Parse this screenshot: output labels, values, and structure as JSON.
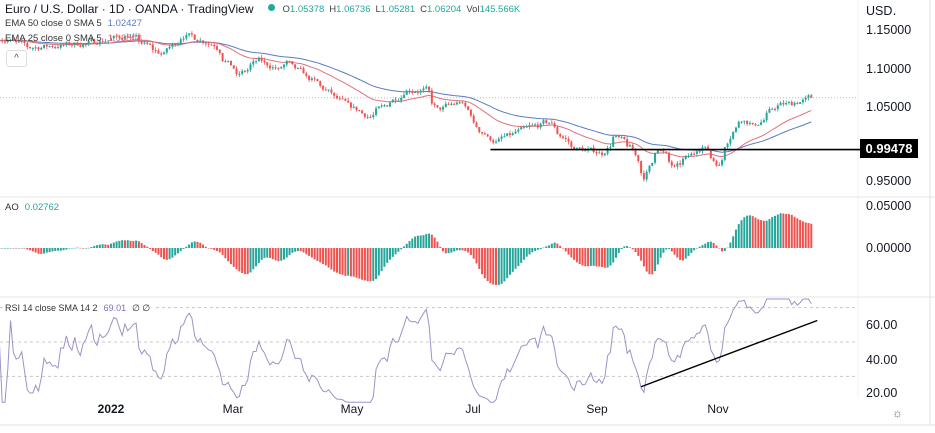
{
  "header": {
    "title": "Euro / U.S. Dollar · 1D · OANDA · TradingView",
    "ohlc": {
      "o_label": "O",
      "o": "1.05378",
      "h_label": "H",
      "h": "1.06736",
      "l_label": "L",
      "l": "1.05281",
      "c_label": "C",
      "c": "1.06204",
      "vol_label": "Vol",
      "vol": "145.566K"
    },
    "ema50_label": "EMA 50 close 0 SMA 5",
    "ema50_value": "1.02427",
    "ema25_label": "EMA 25 close 0 SMA 5",
    "ema25_value": "1.03808",
    "collapse_icon": "chevron-up-icon"
  },
  "ao": {
    "label": "AO",
    "value": "0.02762"
  },
  "rsi": {
    "label": "RSI 14 close SMA 14 2",
    "value": "69.01",
    "extra": "∅ ∅"
  },
  "price_axis": {
    "currency": "USD",
    "ticks": [
      "1.15000",
      "1.10000",
      "1.05000",
      "0.95000"
    ],
    "level_tag": "0.99478"
  },
  "ao_axis": {
    "ticks": [
      "0.05000",
      "0.00000"
    ]
  },
  "rsi_axis": {
    "ticks": [
      "60.00",
      "40.00",
      "20.00"
    ]
  },
  "time_axis": {
    "labels": [
      "2022",
      "Mar",
      "May",
      "Jul",
      "Sep",
      "Nov"
    ],
    "settings_icon": "gear-icon"
  },
  "colors": {
    "up": "#26a69a",
    "down": "#ef5350",
    "ema50": "#5b7bc4",
    "ema25": "#e0707f",
    "rsi": "#9b93c9",
    "level": "#000000"
  },
  "chart_data": {
    "type": "candlestick",
    "symbol": "EUR/USD",
    "interval": "1D",
    "ylim": [
      0.93,
      1.165
    ],
    "close_keypoints": [
      [
        "2021-11-08",
        1.14
      ],
      [
        "2021-11-22",
        1.127
      ],
      [
        "2021-12-07",
        1.13
      ],
      [
        "2021-12-22",
        1.133
      ],
      [
        "2022-01-11",
        1.143
      ],
      [
        "2022-01-28",
        1.118
      ],
      [
        "2022-02-08",
        1.144
      ],
      [
        "2022-02-23",
        1.132
      ],
      [
        "2022-03-07",
        1.09
      ],
      [
        "2022-03-17",
        1.11
      ],
      [
        "2022-03-28",
        1.098
      ],
      [
        "2022-03-31",
        1.107
      ],
      [
        "2022-04-14",
        1.083
      ],
      [
        "2022-04-29",
        1.054
      ],
      [
        "2022-05-12",
        1.038
      ],
      [
        "2022-05-19",
        1.05
      ],
      [
        "2022-05-31",
        1.073
      ],
      [
        "2022-06-09",
        1.072
      ],
      [
        "2022-06-15",
        1.046
      ],
      [
        "2022-06-27",
        1.057
      ],
      [
        "2022-07-06",
        1.02
      ],
      [
        "2022-07-14",
        1.005
      ],
      [
        "2022-07-28",
        1.02
      ],
      [
        "2022-08-10",
        1.03
      ],
      [
        "2022-08-22",
        0.997
      ],
      [
        "2022-09-06",
        0.99
      ],
      [
        "2022-09-12",
        1.012
      ],
      [
        "2022-09-20",
        0.997
      ],
      [
        "2022-09-27",
        0.96
      ],
      [
        "2022-10-04",
        0.998
      ],
      [
        "2022-10-12",
        0.97
      ],
      [
        "2022-10-26",
        1.0
      ],
      [
        "2022-11-03",
        0.975
      ],
      [
        "2022-11-10",
        1.02
      ],
      [
        "2022-11-15",
        1.035
      ],
      [
        "2022-11-21",
        1.025
      ],
      [
        "2022-11-28",
        1.04
      ],
      [
        "2022-12-02",
        1.052
      ],
      [
        "2022-12-09",
        1.054
      ],
      [
        "2022-12-20",
        1.062
      ]
    ],
    "horizontal_level": {
      "price": 0.99478,
      "from": "2022-07-12"
    },
    "rsi_trendline": {
      "from": [
        "2022-09-26",
        24
      ],
      "to": [
        "2022-12-22",
        62.5
      ]
    },
    "rsi_bands": [
      70,
      50,
      30
    ],
    "ao_range": [
      -0.035,
      0.05
    ],
    "rsi_range": [
      20,
      70
    ]
  }
}
